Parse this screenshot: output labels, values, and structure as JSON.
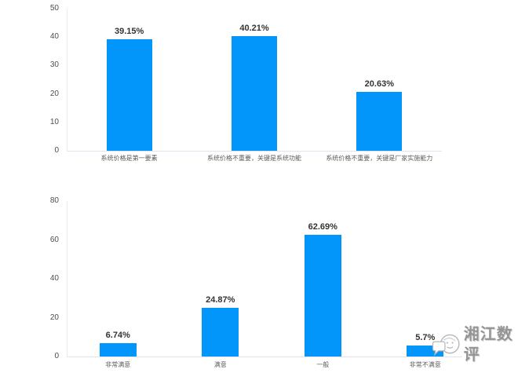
{
  "watermark": {
    "text": "湘江数评",
    "icon": "chat-bubble-sketch-icon",
    "text_color": "#949494"
  },
  "chart_data": [
    {
      "type": "bar",
      "title": "",
      "categories": [
        "系统价格是第一要素",
        "系统价格不重要，关键是系统功能",
        "系统价格不重要，关键是厂家实施能力"
      ],
      "values": [
        39.15,
        40.21,
        20.63
      ],
      "value_labels": [
        "39.15%",
        "40.21%",
        "20.63%"
      ],
      "xlabel": "",
      "ylabel": "",
      "ylim": [
        0,
        50
      ],
      "yticks": [
        0,
        10,
        20,
        30,
        40,
        50
      ],
      "grid": false,
      "legend": "none",
      "bar_color": "#0296fb",
      "value_label_color": "#333333",
      "axis_line_color": "#dfe4ef"
    },
    {
      "type": "bar",
      "title": "",
      "categories": [
        "非常满意",
        "满意",
        "一般",
        "非常不满意"
      ],
      "values": [
        6.74,
        24.87,
        62.69,
        5.7
      ],
      "value_labels": [
        "6.74%",
        "24.87%",
        "62.69%",
        "5.7%"
      ],
      "xlabel": "",
      "ylabel": "",
      "ylim": [
        0,
        80
      ],
      "yticks": [
        0,
        20,
        40,
        60,
        80
      ],
      "grid": false,
      "legend": "none",
      "bar_color": "#0296fb",
      "value_label_color": "#333333",
      "axis_line_color": "#dfe4ef"
    }
  ]
}
